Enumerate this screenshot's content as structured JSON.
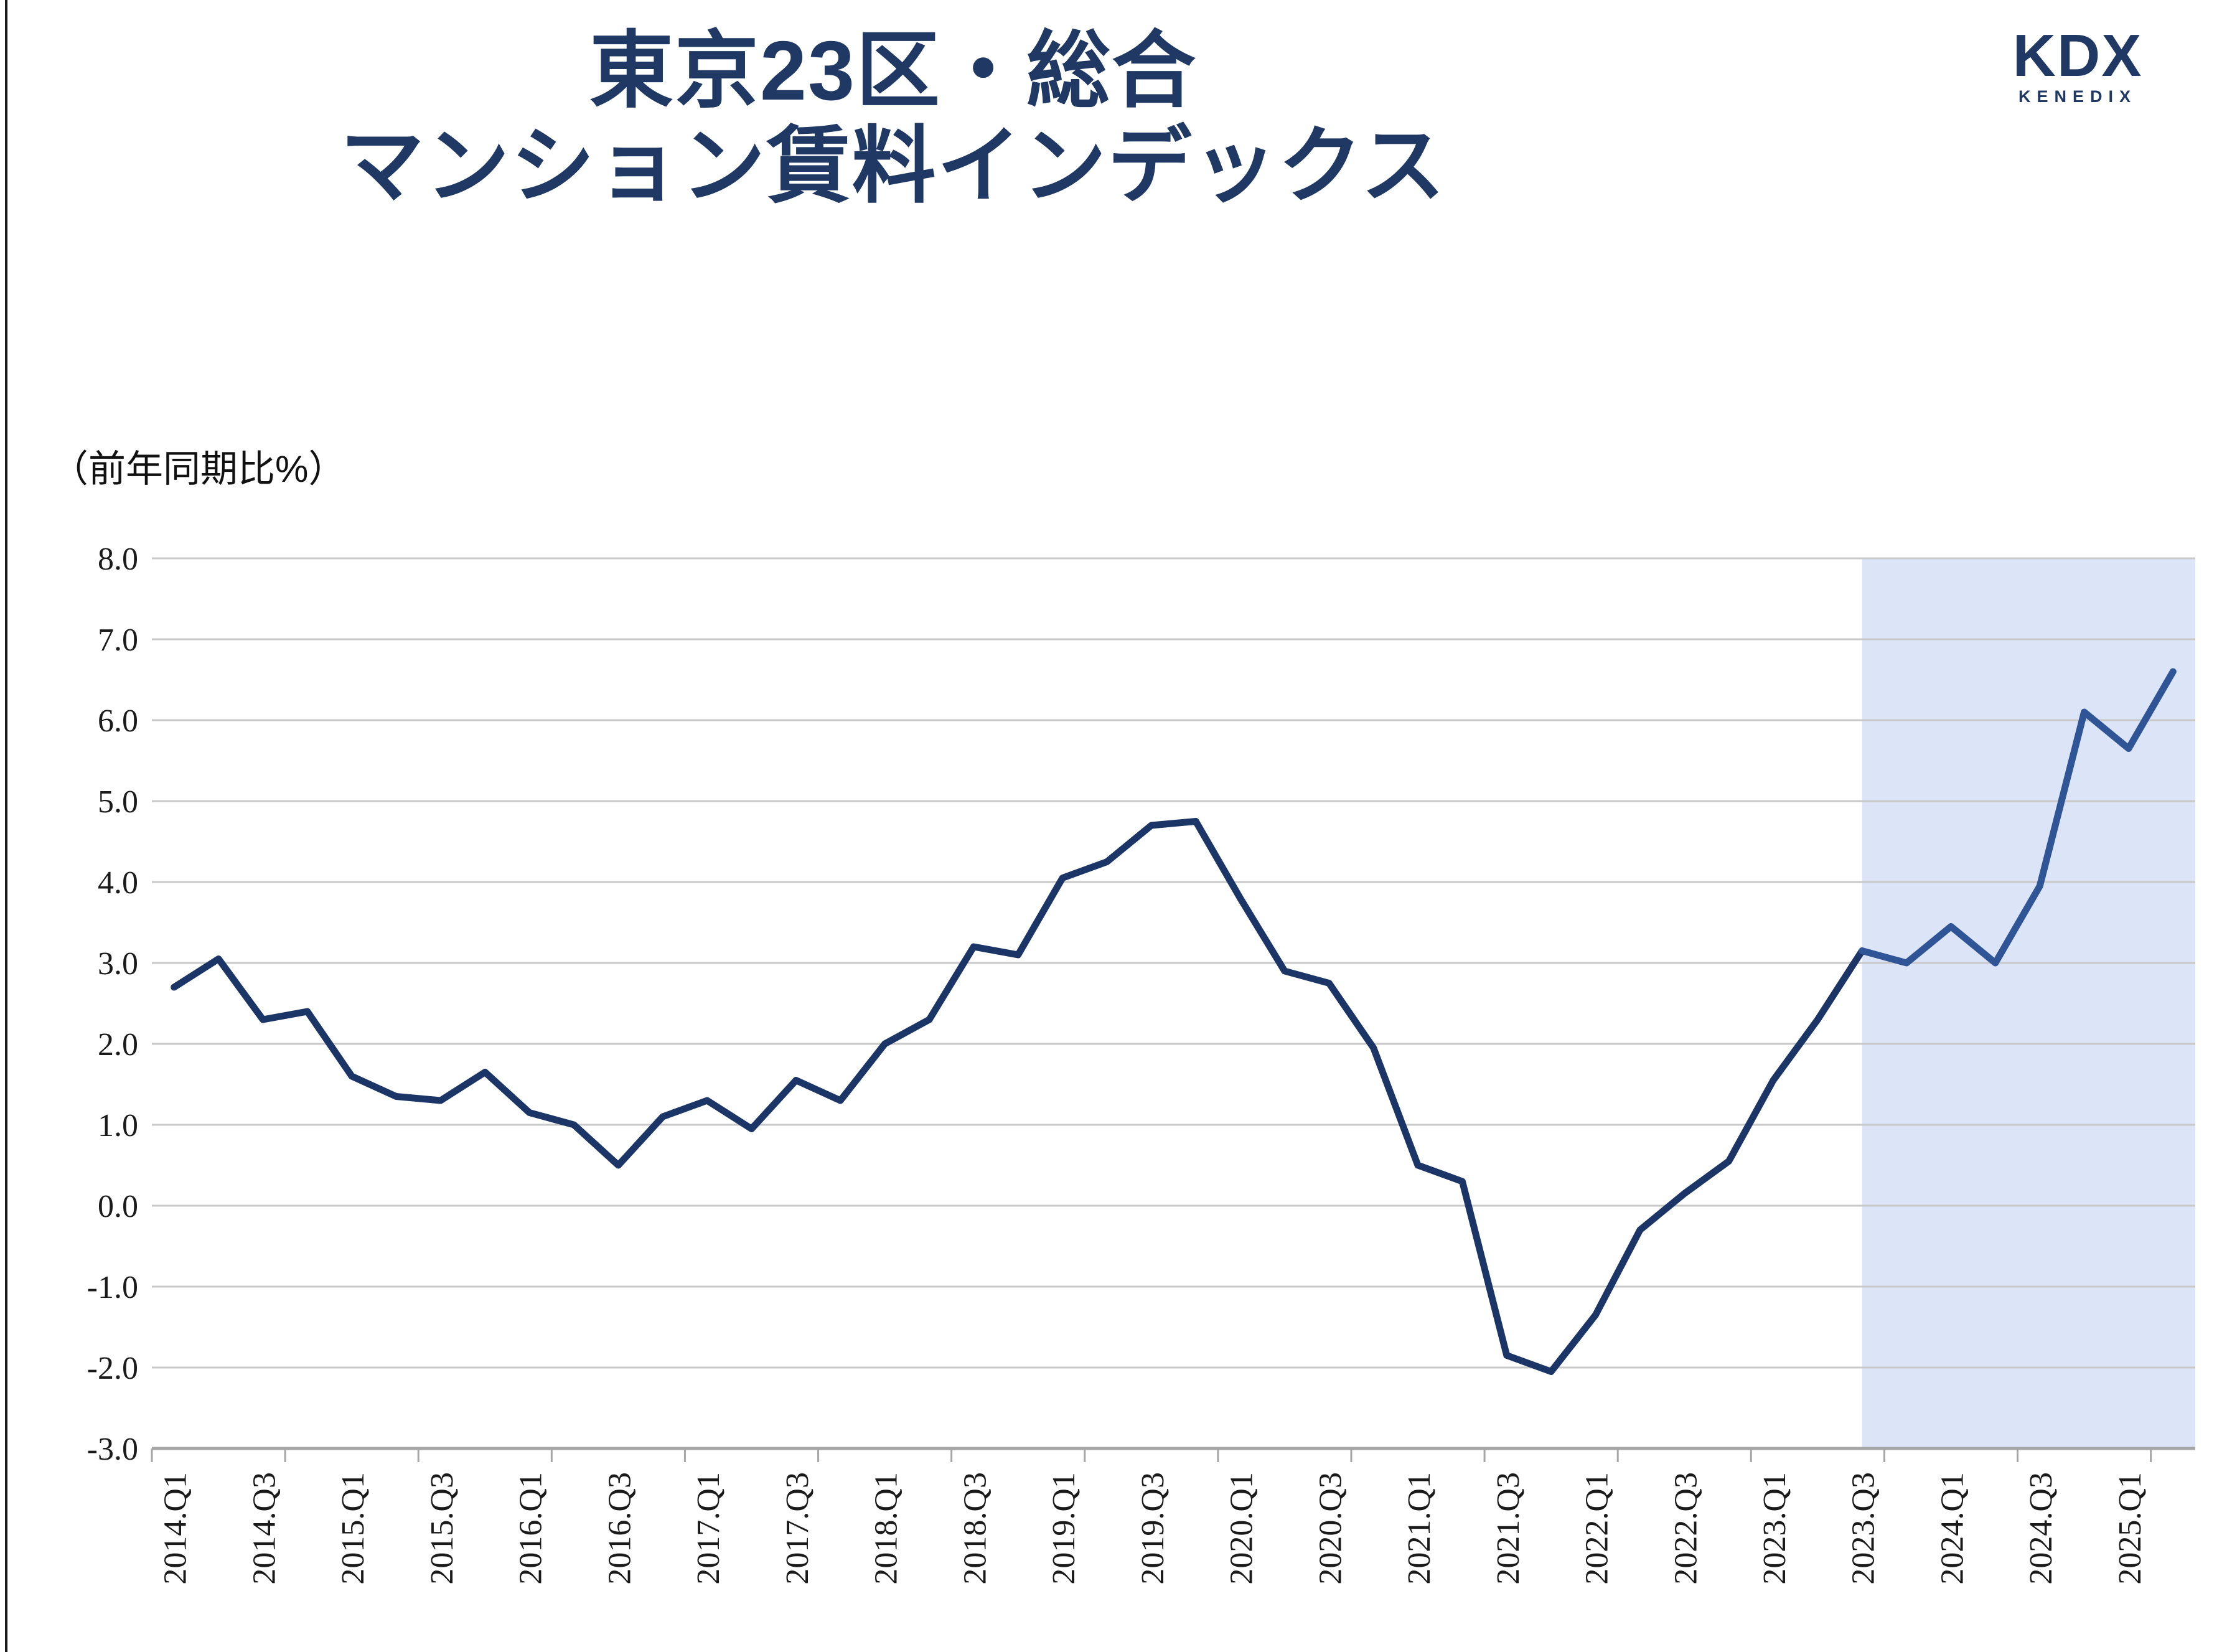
{
  "page": {
    "background": "#ffffff"
  },
  "header": {
    "title_line1": "東京23区・総合",
    "title_line2": "マンション賃料インデックス",
    "title_color": "#1f3864"
  },
  "logo": {
    "brand": "KDX",
    "subbrand": "KENEDIX",
    "color": "#1f3864"
  },
  "chart_data": {
    "type": "line",
    "title": "東京23区・総合 マンション賃料インデックス",
    "ylabel": "（前年同期比%）",
    "xlabel": "",
    "x": [
      "2014.Q1",
      "2014.Q2",
      "2014.Q3",
      "2014.Q4",
      "2015.Q1",
      "2015.Q2",
      "2015.Q3",
      "2015.Q4",
      "2016.Q1",
      "2016.Q2",
      "2016.Q3",
      "2016.Q4",
      "2017.Q1",
      "2017.Q2",
      "2017.Q3",
      "2017.Q4",
      "2018.Q1",
      "2018.Q2",
      "2018.Q3",
      "2018.Q4",
      "2019.Q1",
      "2019.Q2",
      "2019.Q3",
      "2019.Q4",
      "2020.Q1",
      "2020.Q2",
      "2020.Q3",
      "2020.Q4",
      "2021.Q1",
      "2021.Q2",
      "2021.Q3",
      "2021.Q4",
      "2022.Q1",
      "2022.Q2",
      "2022.Q3",
      "2022.Q4",
      "2023.Q1",
      "2023.Q2",
      "2023.Q3",
      "2023.Q4",
      "2024.Q1",
      "2024.Q2",
      "2024.Q3",
      "2024.Q4",
      "2025.Q1",
      "2025.Q2"
    ],
    "series": [
      {
        "name": "東京23区・総合 マンション賃料インデックス（前年同期比%）",
        "values": [
          2.7,
          3.05,
          2.3,
          2.4,
          1.6,
          1.35,
          1.3,
          1.65,
          1.15,
          1.0,
          0.5,
          1.1,
          1.3,
          0.95,
          1.55,
          1.3,
          2.0,
          2.3,
          3.2,
          3.1,
          4.05,
          4.25,
          4.7,
          4.75,
          3.8,
          2.9,
          2.75,
          1.95,
          0.5,
          0.3,
          -1.85,
          -2.05,
          -1.35,
          -0.3,
          0.15,
          0.55,
          1.55,
          2.3,
          3.15,
          3.0,
          3.45,
          3.0,
          3.95,
          6.1,
          5.65,
          6.6
        ],
        "split_at": "2023.Q3",
        "color_before_split": "#1b3666",
        "color_after_split": "#2f5597"
      }
    ],
    "ylim": [
      -3.0,
      8.0
    ],
    "ytick_step": 1.0,
    "ytick_labels": [
      "8.0",
      "7.0",
      "6.0",
      "5.0",
      "4.0",
      "3.0",
      "2.0",
      "1.0",
      "0.0",
      "-1.0",
      "-2.0",
      "-3.0"
    ],
    "xtick_label_interval": 2,
    "xtick_mark_interval": 3,
    "grid": "horizontal",
    "legend": "none",
    "highlight_region": {
      "from": "2023.Q3",
      "to_end": true,
      "color": "#dce4f8"
    },
    "colors": {
      "gridline": "#c8c8c8",
      "axis_line": "#a6a6a6",
      "tick_mark": "#a6a6a6",
      "tick_label": "#1a1a1a"
    }
  }
}
